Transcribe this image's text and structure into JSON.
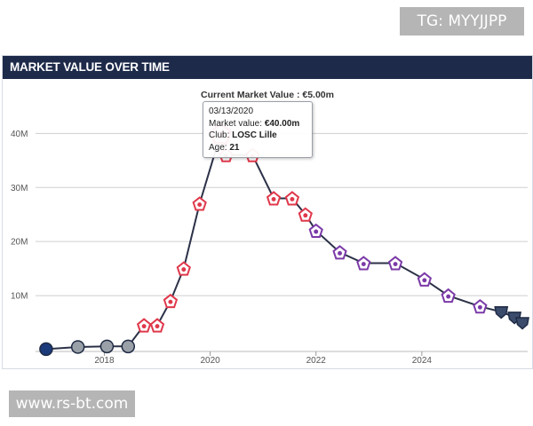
{
  "watermark_top": "TG: MYYJJPP",
  "watermark_bottom": "www.rs-bt.com",
  "header": {
    "title": "MARKET VALUE OVER TIME"
  },
  "tooltip": {
    "date": "03/13/2020",
    "value_label": "Market value:",
    "value": "€40.00m",
    "club_label": "Club:",
    "club": "LOSC Lille",
    "age_label": "Age:",
    "age": "21"
  },
  "colors": {
    "header_bg": "#1d2a4a",
    "line": "#2b3147",
    "grid": "#cfcfcf",
    "psg": "#1b3a7a",
    "montpellier": "#9aa0a8",
    "lille": "#e0384b",
    "fiorentina": "#7b3aa8",
    "paris_fc": "#3a4b6b"
  },
  "chart_data": {
    "type": "line",
    "title": "Current Market Value : €5.00m",
    "xlabel": "",
    "ylabel": "",
    "ylim": [
      0,
      44
    ],
    "xlim": [
      2016.7,
      2026.0
    ],
    "y_ticks": [
      10,
      20,
      30,
      40
    ],
    "y_tick_labels": [
      "10M",
      "20M",
      "30M",
      "40M"
    ],
    "x_ticks": [
      2018,
      2020,
      2022,
      2024
    ],
    "x_tick_labels": [
      "2018",
      "2020",
      "2022",
      "2024"
    ],
    "grid": true,
    "series": [
      {
        "name": "Market value (€m)",
        "points": [
          {
            "x": 2016.9,
            "y": 0.1,
            "club": "psg"
          },
          {
            "x": 2017.5,
            "y": 0.5,
            "club": "montpellier"
          },
          {
            "x": 2018.05,
            "y": 0.6,
            "club": "montpellier"
          },
          {
            "x": 2018.45,
            "y": 0.6,
            "club": "montpellier"
          },
          {
            "x": 2018.75,
            "y": 4.5,
            "club": "lille"
          },
          {
            "x": 2019.0,
            "y": 4.5,
            "club": "lille"
          },
          {
            "x": 2019.25,
            "y": 9,
            "club": "lille"
          },
          {
            "x": 2019.5,
            "y": 15,
            "club": "lille"
          },
          {
            "x": 2019.8,
            "y": 27,
            "club": "lille"
          },
          {
            "x": 2020.2,
            "y": 40,
            "club": "lille"
          },
          {
            "x": 2020.3,
            "y": 36,
            "club": "lille"
          },
          {
            "x": 2020.8,
            "y": 36,
            "club": "lille"
          },
          {
            "x": 2021.2,
            "y": 28,
            "club": "lille"
          },
          {
            "x": 2021.55,
            "y": 28,
            "club": "lille"
          },
          {
            "x": 2021.8,
            "y": 25,
            "club": "lille"
          },
          {
            "x": 2022.0,
            "y": 22,
            "club": "fiorentina"
          },
          {
            "x": 2022.45,
            "y": 18,
            "club": "fiorentina"
          },
          {
            "x": 2022.9,
            "y": 16,
            "club": "fiorentina"
          },
          {
            "x": 2023.5,
            "y": 16,
            "club": "fiorentina"
          },
          {
            "x": 2024.05,
            "y": 13,
            "club": "fiorentina"
          },
          {
            "x": 2024.5,
            "y": 10,
            "club": "fiorentina"
          },
          {
            "x": 2025.1,
            "y": 8,
            "club": "fiorentina"
          },
          {
            "x": 2025.5,
            "y": 7,
            "club": "paris_fc"
          },
          {
            "x": 2025.75,
            "y": 6,
            "club": "paris_fc"
          },
          {
            "x": 2025.9,
            "y": 5,
            "club": "paris_fc"
          }
        ]
      }
    ],
    "highlight_index": 9
  }
}
